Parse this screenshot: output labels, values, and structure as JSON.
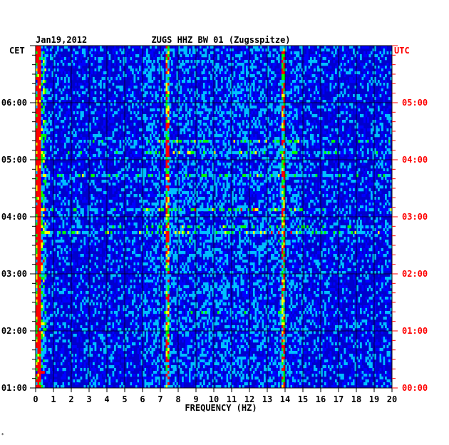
{
  "chart_data": {
    "type": "heatmap",
    "title_date": "Jan19,2012",
    "title": "ZUGS HHZ BW 01 (Zugsspitze)",
    "xlabel": "FREQUENCY (HZ)",
    "left_axis_label": "CET",
    "right_axis_label": "UTC",
    "x_range": [
      0,
      20
    ],
    "x_ticks": [
      "0",
      "1",
      "2",
      "3",
      "4",
      "5",
      "6",
      "7",
      "8",
      "9",
      "10",
      "11",
      "12",
      "13",
      "14",
      "15",
      "16",
      "17",
      "18",
      "19",
      "20"
    ],
    "left_ticks": [
      {
        "label": "06:00",
        "hour": 6
      },
      {
        "label": "05:00",
        "hour": 5
      },
      {
        "label": "04:00",
        "hour": 4
      },
      {
        "label": "03:00",
        "hour": 3
      },
      {
        "label": "02:00",
        "hour": 2
      },
      {
        "label": "01:00",
        "hour": 1
      }
    ],
    "right_ticks": [
      {
        "label": "05:00",
        "hour": 6
      },
      {
        "label": "04:00",
        "hour": 5
      },
      {
        "label": "03:00",
        "hour": 4
      },
      {
        "label": "02:00",
        "hour": 3
      },
      {
        "label": "01:00",
        "hour": 2
      },
      {
        "label": "00:00",
        "hour": 1
      }
    ],
    "y_range_cet_hours": [
      1,
      7
    ],
    "grid": true,
    "colormap": [
      "#00008b",
      "#0000ff",
      "#00bfff",
      "#00ff00",
      "#ffff00",
      "#ff0000"
    ],
    "prominent_frequency_bands_hz": [
      0.2,
      7.4,
      13.9
    ],
    "axis_colors": {
      "left": "#000000",
      "right": "#ff0000"
    }
  },
  "footnote": "*"
}
